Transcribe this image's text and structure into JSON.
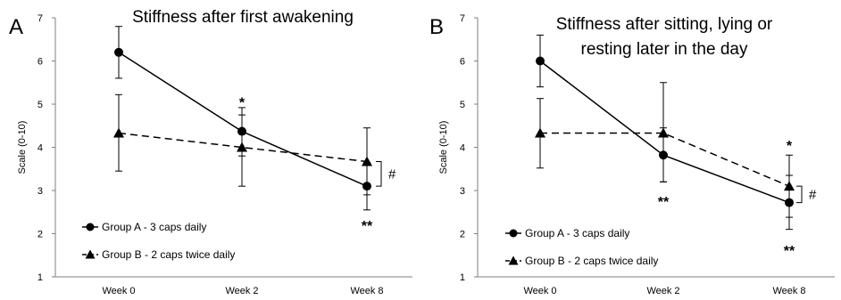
{
  "chart_data": [
    {
      "type": "line",
      "panel": "A",
      "title_lines": [
        "Stiffness after first awakening"
      ],
      "xlabel": "",
      "ylabel": "Scale (0-10)",
      "ylim": [
        1,
        7
      ],
      "yticks": [
        "1",
        "2",
        "3",
        "4",
        "5",
        "6",
        "7"
      ],
      "categories": [
        "Week 0",
        "Week 2",
        "Week 8"
      ],
      "series": [
        {
          "name": "Group A - 3 caps daily",
          "marker": "circle",
          "dash": false,
          "values": [
            6.2,
            4.37,
            3.1
          ],
          "err_low": [
            5.6,
            3.8,
            2.55
          ],
          "err_high": [
            6.8,
            4.92,
            3.65
          ]
        },
        {
          "name": "Group B - 2 caps twice daily",
          "marker": "triangle",
          "dash": true,
          "values": [
            4.33,
            4.0,
            3.67
          ],
          "err_low": [
            3.45,
            3.1,
            2.9
          ],
          "err_high": [
            5.22,
            4.75,
            4.45
          ]
        }
      ],
      "annotations": [
        {
          "text": "*",
          "category": 1,
          "y": 5.05
        },
        {
          "text": "**",
          "category": 2,
          "y": 2.2
        }
      ],
      "bracket": {
        "label": "#",
        "category": 2,
        "y_low": 3.1,
        "y_high": 3.67
      },
      "legend_position": "bottom-left"
    },
    {
      "type": "line",
      "panel": "B",
      "title_lines": [
        "Stiffness after sitting, lying or",
        "resting later in the day"
      ],
      "xlabel": "",
      "ylabel": "Scale (0-10)",
      "ylim": [
        1,
        7
      ],
      "yticks": [
        "1",
        "2",
        "3",
        "4",
        "5",
        "6",
        "7"
      ],
      "categories": [
        "Week 0",
        "Week 2",
        "Week 8"
      ],
      "series": [
        {
          "name": "Group A - 3 caps daily",
          "marker": "circle",
          "dash": false,
          "values": [
            6.0,
            3.82,
            2.72
          ],
          "err_low": [
            5.4,
            3.2,
            2.1
          ],
          "err_high": [
            6.6,
            4.45,
            3.35
          ]
        },
        {
          "name": "Group B - 2 caps twice daily",
          "marker": "triangle",
          "dash": true,
          "values": [
            4.33,
            4.33,
            3.1
          ],
          "err_low": [
            3.52,
            3.2,
            2.38
          ],
          "err_high": [
            5.13,
            5.5,
            3.82
          ]
        }
      ],
      "annotations": [
        {
          "text": "**",
          "category": 1,
          "y": 2.75
        },
        {
          "text": "*",
          "category": 2,
          "y": 4.05
        },
        {
          "text": "**",
          "category": 2,
          "y": 1.62
        }
      ],
      "bracket": {
        "label": "#",
        "category": 2,
        "y_low": 2.72,
        "y_high": 3.1
      },
      "legend_position": "bottom-left"
    }
  ]
}
